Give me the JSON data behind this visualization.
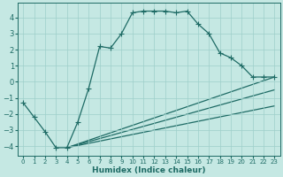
{
  "xlabel": "Humidex (Indice chaleur)",
  "bg_color": "#c5e8e3",
  "grid_color": "#9ecfca",
  "line_color": "#1e6b65",
  "markersize": 2.5,
  "linewidth": 0.9,
  "xlim": [
    -0.5,
    23.5
  ],
  "ylim": [
    -4.6,
    4.9
  ],
  "xticks": [
    0,
    1,
    2,
    3,
    4,
    5,
    6,
    7,
    8,
    9,
    10,
    11,
    12,
    13,
    14,
    15,
    16,
    17,
    18,
    19,
    20,
    21,
    22,
    23
  ],
  "yticks": [
    -4,
    -3,
    -2,
    -1,
    0,
    1,
    2,
    3,
    4
  ],
  "main_series": [
    [
      0,
      -1.3
    ],
    [
      1,
      -2.2
    ],
    [
      2,
      -3.1
    ],
    [
      3,
      -4.1
    ],
    [
      4,
      -4.1
    ],
    [
      5,
      -2.5
    ],
    [
      6,
      -0.4
    ],
    [
      7,
      2.2
    ],
    [
      8,
      2.1
    ],
    [
      9,
      3.0
    ],
    [
      10,
      4.3
    ],
    [
      11,
      4.4
    ],
    [
      12,
      4.4
    ],
    [
      13,
      4.4
    ],
    [
      14,
      4.3
    ],
    [
      15,
      4.4
    ],
    [
      16,
      3.6
    ],
    [
      17,
      3.0
    ],
    [
      18,
      1.8
    ],
    [
      19,
      1.5
    ],
    [
      20,
      1.0
    ],
    [
      21,
      0.3
    ],
    [
      22,
      0.3
    ],
    [
      23,
      0.3
    ]
  ],
  "straight_lines": [
    {
      "x": [
        4,
        23
      ],
      "y": [
        -4.1,
        0.3
      ]
    },
    {
      "x": [
        4,
        23
      ],
      "y": [
        -4.1,
        -0.5
      ]
    },
    {
      "x": [
        4,
        23
      ],
      "y": [
        -4.1,
        -1.5
      ]
    }
  ]
}
